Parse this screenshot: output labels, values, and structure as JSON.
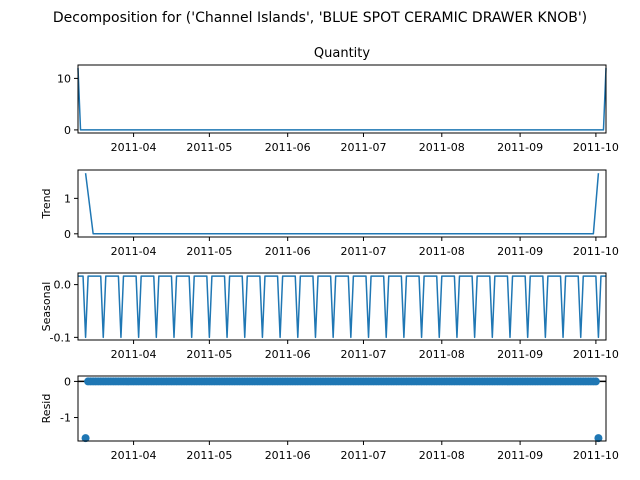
{
  "chart_data": {
    "type": "line",
    "title": "Decomposition for ('Channel Islands', 'BLUE SPOT CERAMIC DRAWER KNOB')",
    "x_range": [
      "2011-03-10",
      "2011-10-05"
    ],
    "x_ticks": [
      "2011-04",
      "2011-05",
      "2011-06",
      "2011-07",
      "2011-08",
      "2011-09",
      "2011-10"
    ],
    "line_color": "#1f77b4",
    "panels": [
      {
        "name": "observed",
        "title": "Quantity",
        "ylabel": "",
        "ylim": [
          -0.6,
          12.6
        ],
        "yticks": [
          "0",
          "10"
        ],
        "ytick_values": [
          0,
          10
        ],
        "kind": "line",
        "series": {
          "x": [
            "2011-03-10",
            "2011-03-11",
            "2011-10-04",
            "2011-10-05"
          ],
          "y": [
            12,
            0,
            0,
            12
          ]
        }
      },
      {
        "name": "trend",
        "title": "",
        "ylabel": "Trend",
        "ylim": [
          -0.09,
          1.8
        ],
        "yticks": [
          "0",
          "1"
        ],
        "ytick_values": [
          0,
          1
        ],
        "kind": "line",
        "series": {
          "x": [
            "2011-03-13",
            "2011-03-16",
            "2011-09-30",
            "2011-10-02"
          ],
          "y": [
            1.71,
            0,
            0,
            1.71
          ]
        }
      },
      {
        "name": "seasonal",
        "title": "",
        "ylabel": "Seasonal",
        "ylim": [
          -0.105,
          0.022
        ],
        "yticks": [
          "0.0",
          "-0.1"
        ],
        "ytick_values": [
          0,
          -0.1
        ],
        "kind": "seasonal",
        "period_days": 7,
        "high": 0.016,
        "low": -0.1
      },
      {
        "name": "resid",
        "title": "",
        "ylabel": "Resid",
        "ylim": [
          -1.65,
          0.15
        ],
        "yticks": [
          "0",
          "-1"
        ],
        "ytick_values": [
          0,
          -1
        ],
        "kind": "scatter",
        "baseline": 0,
        "outliers": [
          {
            "x": "2011-03-13",
            "y": -1.57
          },
          {
            "x": "2011-10-02",
            "y": -1.57
          }
        ],
        "dense_range": [
          "2011-03-14",
          "2011-10-01"
        ],
        "dense_value": 0
      }
    ]
  }
}
